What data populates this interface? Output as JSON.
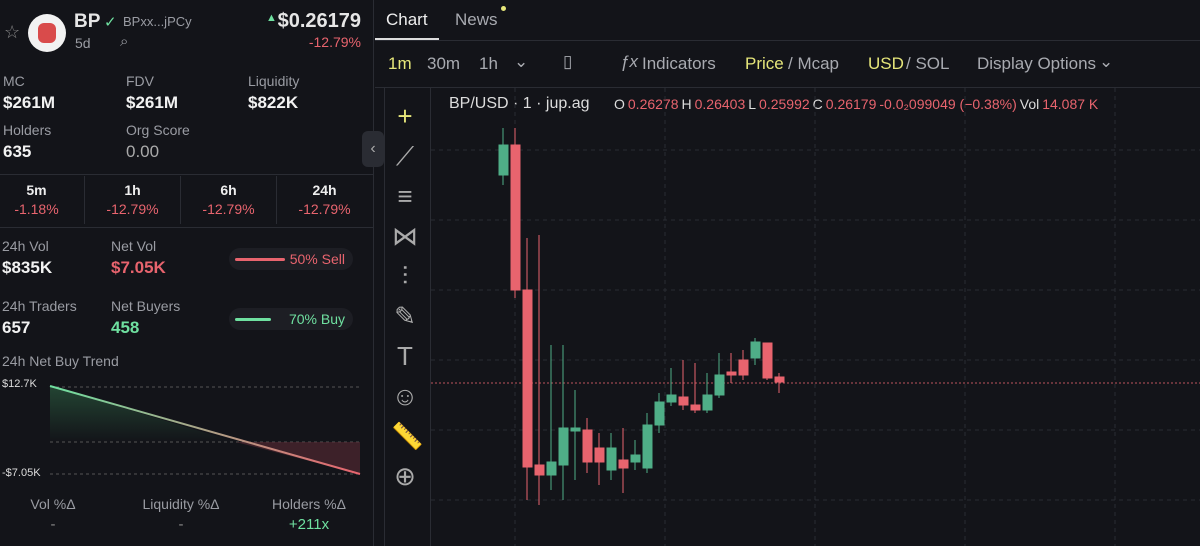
{
  "token": {
    "name": "BP",
    "address": "BPxx...jPCy",
    "age": "5d",
    "price": "$0.26179",
    "change": "-12.79%"
  },
  "stats": [
    {
      "label": "MC",
      "value": "$261M"
    },
    {
      "label": "FDV",
      "value": "$261M"
    },
    {
      "label": "Liquidity",
      "value": "$822K"
    },
    {
      "label": "Holders",
      "value": "635"
    },
    {
      "label": "Org Score",
      "value": "0.00"
    }
  ],
  "timeframes": [
    {
      "label": "5m",
      "change": "-1.18%"
    },
    {
      "label": "1h",
      "change": "-12.79%"
    },
    {
      "label": "6h",
      "change": "-12.79%"
    },
    {
      "label": "24h",
      "change": "-12.79%"
    }
  ],
  "volume": {
    "vol_label": "24h Vol",
    "vol": "$835K",
    "net_label": "Net Vol",
    "net": "$7.05K",
    "sell": "50% Sell"
  },
  "traders": {
    "traders_label": "24h Traders",
    "traders": "657",
    "buyers_label": "Net Buyers",
    "buyers": "458",
    "buy": "70% Buy"
  },
  "trend": {
    "title": "24h Net Buy Trend",
    "top": "$12.7K",
    "bottom": "-$7.05K"
  },
  "footer": [
    {
      "label": "Vol %Δ",
      "value": "-"
    },
    {
      "label": "Liquidity %Δ",
      "value": "-"
    },
    {
      "label": "Holders %Δ",
      "value": "+211x"
    }
  ],
  "tabs": [
    "Chart",
    "News"
  ],
  "toolbar": {
    "intervals": [
      "1m",
      "30m",
      "1h"
    ],
    "indicators": "Indicators",
    "price": "Price",
    "mcap": "/ Mcap",
    "usd": "USD",
    "sol": "/ SOL",
    "display": "Display Options"
  },
  "legend": {
    "symbol": "BP/USD · 1 · jup.ag",
    "ohlc": [
      {
        "label": "O",
        "value": "0.26278"
      },
      {
        "label": "H",
        "value": "0.26403"
      },
      {
        "label": "L",
        "value": "0.25992"
      },
      {
        "label": "C",
        "value": "0.26179"
      }
    ],
    "change": "-0.0₂099049 (−0.38%)",
    "vol_label": "Vol",
    "vol": "14.087 K"
  }
}
